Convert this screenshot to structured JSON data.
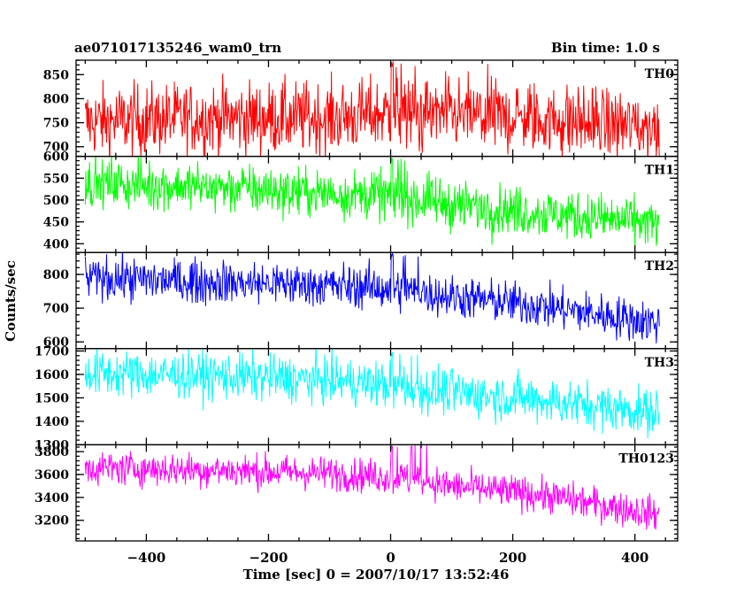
{
  "chart_data": {
    "type": "line",
    "title": "ae071017135246_wam0_trn",
    "bin_time_label": "Bin time: 1.0 s",
    "xlabel": "Time [sec] 0 = 2007/10/17 13:52:46",
    "ylabel": "Counts/sec",
    "xlim": [
      -515,
      470
    ],
    "xticks": [
      -400,
      -200,
      0,
      200,
      400
    ],
    "xtick_labels": [
      "−400",
      "−200",
      "0",
      "200",
      "400"
    ],
    "x_start": -500,
    "x_end": 440,
    "grid": false,
    "panels": [
      {
        "name": "TH0",
        "color": "#ff0000",
        "ylim": [
          680,
          880
        ],
        "yticks": [
          700,
          750,
          800,
          850
        ],
        "trend": [
          [
            -500,
            752
          ],
          [
            -300,
            760
          ],
          [
            -100,
            760
          ],
          [
            0,
            770
          ],
          [
            50,
            768
          ],
          [
            200,
            762
          ],
          [
            440,
            740
          ]
        ],
        "noise": 38,
        "spike": 880
      },
      {
        "name": "TH1",
        "color": "#00ff00",
        "ylim": [
          380,
          600
        ],
        "yticks": [
          400,
          450,
          500,
          550,
          600
        ],
        "trend": [
          [
            -500,
            540
          ],
          [
            -300,
            530
          ],
          [
            -100,
            515
          ],
          [
            0,
            510
          ],
          [
            100,
            490
          ],
          [
            250,
            470
          ],
          [
            440,
            445
          ]
        ],
        "noise": 28,
        "spike": 600
      },
      {
        "name": "TH2",
        "color": "#0000ff",
        "ylim": [
          580,
          865
        ],
        "yticks": [
          600,
          700,
          800
        ],
        "trend": [
          [
            -500,
            790
          ],
          [
            -300,
            778
          ],
          [
            -100,
            768
          ],
          [
            0,
            758
          ],
          [
            100,
            735
          ],
          [
            250,
            705
          ],
          [
            440,
            655
          ]
        ],
        "noise": 32,
        "spike": 865
      },
      {
        "name": "TH3",
        "color": "#00ffff",
        "ylim": [
          1300,
          1710
        ],
        "yticks": [
          1300,
          1400,
          1500,
          1600,
          1700
        ],
        "trend": [
          [
            -500,
            1605
          ],
          [
            -300,
            1595
          ],
          [
            -100,
            1575
          ],
          [
            0,
            1555
          ],
          [
            100,
            1525
          ],
          [
            250,
            1490
          ],
          [
            440,
            1435
          ]
        ],
        "noise": 50,
        "spike": 1700
      },
      {
        "name": "TH0123",
        "color": "#ff00ff",
        "ylim": [
          3020,
          3860
        ],
        "yticks": [
          3200,
          3400,
          3600,
          3800
        ],
        "trend": [
          [
            -500,
            3660
          ],
          [
            -300,
            3640
          ],
          [
            -100,
            3610
          ],
          [
            0,
            3580
          ],
          [
            100,
            3500
          ],
          [
            250,
            3420
          ],
          [
            440,
            3250
          ]
        ],
        "noise": 75,
        "spike": 3860
      }
    ]
  }
}
